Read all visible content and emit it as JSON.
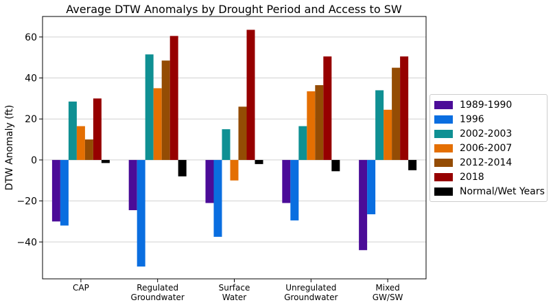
{
  "chart_data": {
    "type": "bar",
    "title": "Average DTW Anomalys by Drought Period and Access to SW",
    "xlabel": "",
    "ylabel": "DTW Anomaly (ft)",
    "ylim": [
      -58,
      70
    ],
    "yticks": [
      -40,
      -20,
      0,
      20,
      40,
      60
    ],
    "ytick_labels": [
      "−40",
      "−20",
      "0",
      "20",
      "40",
      "60"
    ],
    "grid": "horizontal",
    "legend_position": "center-right",
    "categories": [
      [
        "CAP"
      ],
      [
        "Regulated",
        "Groundwater"
      ],
      [
        "Surface",
        "Water"
      ],
      [
        "Unregulated",
        "Groundwater"
      ],
      [
        "Mixed",
        "GW/SW"
      ]
    ],
    "series": [
      {
        "name": "1989-1990",
        "color": "#4b0c98",
        "values": [
          -30,
          -24.5,
          -21,
          -21,
          -44
        ]
      },
      {
        "name": "1996",
        "color": "#0a6ee0",
        "values": [
          -32,
          -52,
          -37.5,
          -29.5,
          -26.5
        ]
      },
      {
        "name": "2002-2003",
        "color": "#0f9093",
        "values": [
          28.5,
          51.5,
          15,
          16.5,
          34
        ]
      },
      {
        "name": "2006-2007",
        "color": "#e46f02",
        "values": [
          16.5,
          35,
          -10,
          33.5,
          24.5
        ]
      },
      {
        "name": "2012-2014",
        "color": "#944c04",
        "values": [
          10,
          48.5,
          26,
          36.5,
          45
        ]
      },
      {
        "name": "2018",
        "color": "#960000",
        "values": [
          30,
          60.5,
          63.5,
          50.5,
          50.5
        ]
      },
      {
        "name": "Normal/Wet Years",
        "color": "#000000",
        "values": [
          -1.5,
          -8,
          -2,
          -5.5,
          -5
        ]
      }
    ]
  }
}
